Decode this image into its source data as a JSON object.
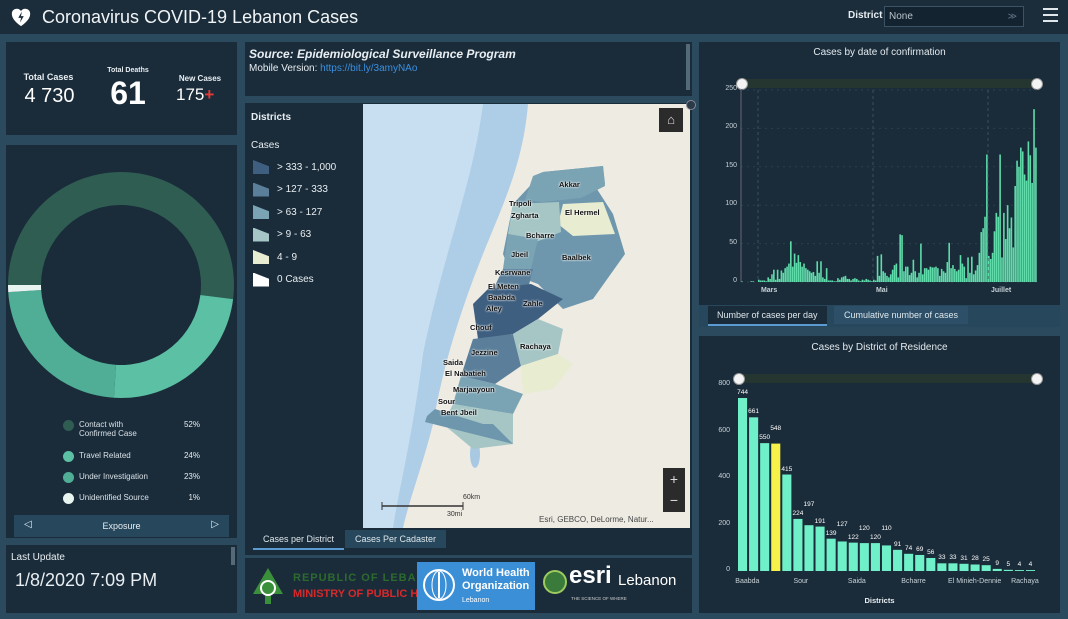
{
  "header": {
    "title": "Coronavirus COVID-19 Lebanon Cases",
    "district_label": "District",
    "district_value": "None",
    "icons": [
      "heart-shield-icon",
      "menu-icon"
    ]
  },
  "stats": {
    "total_cases_label": "Total Cases",
    "total_cases": "4 730",
    "total_deaths_label": "Total Deaths",
    "total_deaths": "61",
    "new_cases_label": "New Cases",
    "new_cases": "175",
    "new_cases_marker": "+",
    "marker_color": "#e53935"
  },
  "exposure": {
    "title": "Exposure",
    "slices": [
      {
        "label": "Contact with Confirmed Case",
        "pct": "52%",
        "value": 52,
        "color": "#2f5d52"
      },
      {
        "label": "Travel Related",
        "pct": "24%",
        "value": 24,
        "color": "#5cc0a4"
      },
      {
        "label": "Under Investigation",
        "pct": "23%",
        "value": 23,
        "color": "#4fae95"
      },
      {
        "label": "Unidentified Source",
        "pct": "1%",
        "value": 1,
        "color": "#e8f4ef"
      }
    ]
  },
  "last_update": {
    "label": "Last Update",
    "value": "1/8/2020 7:09 PM"
  },
  "source": {
    "title": "Source: Epidemiological Surveillance Program",
    "mobile_label": "Mobile Version:",
    "mobile_link": "https://bit.ly/3amyNAo"
  },
  "map": {
    "legend_title": "Districts",
    "legend_subtitle": "Cases",
    "classes": [
      {
        "label": "> 333 - 1,000",
        "color": "#3e5f80"
      },
      {
        "label": "> 127 - 333",
        "color": "#5b7f9a"
      },
      {
        "label": "> 63 - 127",
        "color": "#7aa3b3"
      },
      {
        "label": "> 9 - 63",
        "color": "#a6c6c6"
      },
      {
        "label": "4 - 9",
        "color": "#e8ecd0"
      },
      {
        "label": "0 Cases",
        "color": "#ffffff"
      }
    ],
    "districts": [
      "Akkar",
      "Tripoli",
      "Zgharta",
      "El Hermel",
      "Bcharre",
      "Jbeil",
      "Baalbek",
      "Kesrwane",
      "El Meten",
      "Baabda",
      "Zahle",
      "Aley",
      "Chouf",
      "Jezzine",
      "Rachaya",
      "Saida",
      "El Nabatieh",
      "Marjaayoun",
      "Sour",
      "Bent Jbeil"
    ],
    "scale_km": "60km",
    "scale_mi": "30mi",
    "attribution": "Esri, GEBCO, DeLorme, Natur...",
    "zoom_in": "+",
    "zoom_out": "−",
    "tabs": [
      "Cases per District",
      "Cases Per Cadaster"
    ]
  },
  "logos": {
    "moph_line1": "REPUBLIC OF LEBANON",
    "moph_line2": "MINISTRY OF PUBLIC HEALTH",
    "who_line1": "World Health",
    "who_line2": "Organization",
    "who_line3": "Lebanon",
    "esri_name": "esri",
    "esri_region": "Lebanon",
    "esri_tagline": "THE SCIENCE OF WHERE"
  },
  "chart_data": [
    {
      "type": "bar",
      "title": "Cases by  date of confirmation",
      "x_range": [
        "2020-02-21",
        "2020-07-26"
      ],
      "x_tick_labels": [
        "Mars",
        "Mai",
        "Juillet"
      ],
      "ylim": [
        0,
        250
      ],
      "y_ticks": [
        0,
        50,
        100,
        150,
        200,
        250
      ],
      "color": "#5fdcaa",
      "values": [
        1,
        0,
        0,
        0,
        0,
        1,
        1,
        0,
        0,
        3,
        2,
        2,
        2,
        1,
        6,
        4,
        10,
        16,
        3,
        16,
        4,
        15,
        12,
        18,
        20,
        24,
        53,
        20,
        37,
        25,
        35,
        26,
        20,
        24,
        18,
        16,
        14,
        12,
        13,
        8,
        27,
        12,
        27,
        6,
        4,
        18,
        2,
        2,
        2,
        1,
        1,
        5,
        3,
        6,
        7,
        8,
        4,
        4,
        2,
        4,
        5,
        4,
        2,
        1,
        3,
        2,
        4,
        3,
        2,
        1,
        3,
        2,
        34,
        8,
        36,
        14,
        12,
        8,
        6,
        10,
        16,
        22,
        24,
        6,
        62,
        61,
        14,
        20,
        20,
        9,
        12,
        29,
        14,
        6,
        12,
        50,
        10,
        18,
        18,
        16,
        20,
        19,
        19,
        20,
        18,
        8,
        17,
        14,
        12,
        26,
        51,
        18,
        22,
        17,
        14,
        16,
        35,
        24,
        20,
        5,
        32,
        12,
        33,
        10,
        15,
        22,
        38,
        65,
        70,
        85,
        166,
        34,
        30,
        38,
        66,
        90,
        85,
        166,
        32,
        90,
        56,
        100,
        70,
        84,
        45,
        125,
        158,
        150,
        175,
        170,
        140,
        132,
        183,
        165,
        129,
        225,
        175
      ],
      "tabs": [
        "Number of cases per day",
        "Cumulative number of cases"
      ]
    },
    {
      "type": "bar",
      "title": "Cases by District of Residence",
      "xlabel": "Districts",
      "ylim": [
        0,
        800
      ],
      "y_ticks": [
        0,
        200,
        400,
        600,
        800
      ],
      "color": "#6ff0c8",
      "highlight_color": "#f7f24a",
      "highlight_index": 3,
      "values": [
        744,
        661,
        550,
        548,
        415,
        224,
        197,
        191,
        139,
        127,
        122,
        120,
        120,
        110,
        91,
        74,
        69,
        56,
        33,
        33,
        31,
        28,
        25,
        9,
        5,
        4,
        4
      ],
      "x_tick_labels": [
        {
          "index": 0,
          "label": "Baabda"
        },
        {
          "index": 5,
          "label": "Sour"
        },
        {
          "index": 10,
          "label": "Saida"
        },
        {
          "index": 15,
          "label": "Bcharre"
        },
        {
          "index": 20,
          "label": "El Minieh-Dennie"
        },
        {
          "index": 25,
          "label": "Rachaya"
        }
      ]
    }
  ]
}
